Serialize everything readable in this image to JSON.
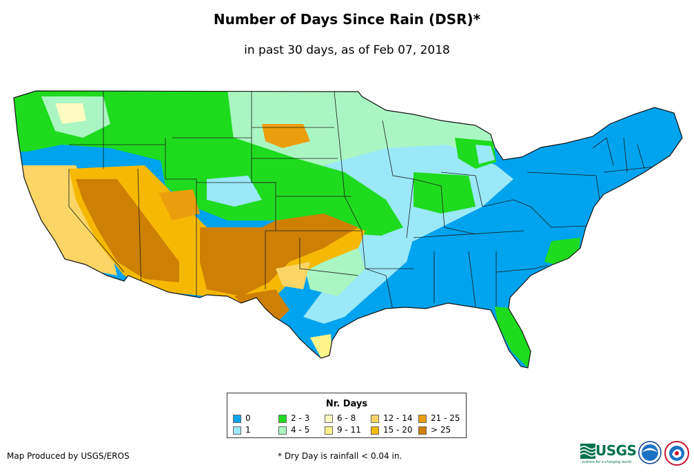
{
  "title": "Number of Days Since Rain (DSR)*",
  "subtitle": "in past 30 days, as of Feb 07, 2018",
  "legend": {
    "title": "Nr. Days",
    "items": [
      {
        "label": "0",
        "color": "#00a3ee"
      },
      {
        "label": "1",
        "color": "#9ae8f8"
      },
      {
        "label": "2 - 3",
        "color": "#1edb1e"
      },
      {
        "label": "4 - 5",
        "color": "#aaf6c2"
      },
      {
        "label": "6 - 8",
        "color": "#fdfbc2"
      },
      {
        "label": "9 - 11",
        "color": "#fdf48a"
      },
      {
        "label": "12 - 14",
        "color": "#fbd565"
      },
      {
        "label": "15 - 20",
        "color": "#f5b904"
      },
      {
        "label": "21 - 25",
        "color": "#eb9e0c"
      },
      {
        "label": "> 25",
        "color": "#ce8004"
      }
    ]
  },
  "footer": {
    "producer": "Map Produced by USGS/EROS",
    "note": "* Dry Day is rainfall < 0.04 in."
  },
  "logos": {
    "usgs": "USGS",
    "usgs_tagline": "science for a changing world",
    "noaa": "noaa-logo-icon",
    "nws": "national-weather-service-logo-icon"
  }
}
